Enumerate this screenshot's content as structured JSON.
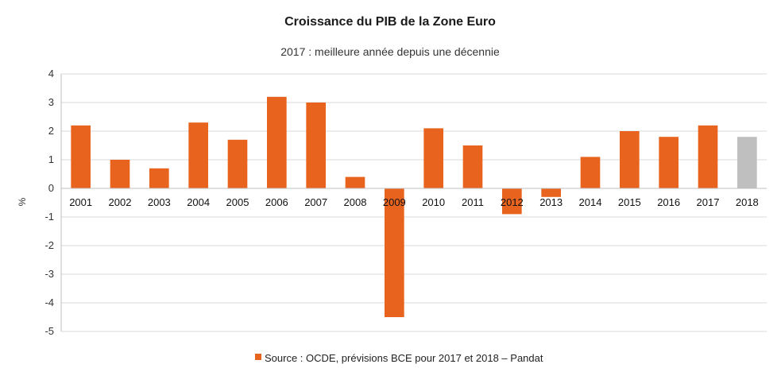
{
  "chart_data": {
    "type": "bar",
    "title": "Croissance du PIB de la Zone Euro",
    "subtitle": "2017 : meilleure année depuis une décennie",
    "ylabel": "%",
    "xlabel": "",
    "ylim": [
      -5,
      4
    ],
    "yticks": [
      -5,
      -4,
      -3,
      -2,
      -1,
      0,
      1,
      2,
      3,
      4
    ],
    "grid": true,
    "legend_position": "bottom",
    "categories": [
      "2001",
      "2002",
      "2003",
      "2004",
      "2005",
      "2006",
      "2007",
      "2008",
      "2009",
      "2010",
      "2011",
      "2012",
      "2013",
      "2014",
      "2015",
      "2016",
      "2017",
      "2018"
    ],
    "series": [
      {
        "name": "Source : OCDE, prévisions BCE pour 2017 et 2018 – Pandat",
        "color": "#e8641e",
        "highlight_color": "#bfbfbf",
        "highlight_categories": [
          "2018"
        ],
        "values": [
          2.2,
          1.0,
          0.7,
          2.3,
          1.7,
          3.2,
          3.0,
          0.4,
          -4.5,
          2.1,
          1.5,
          -0.9,
          -0.3,
          1.1,
          2.0,
          1.8,
          2.2,
          1.8
        ]
      }
    ]
  }
}
